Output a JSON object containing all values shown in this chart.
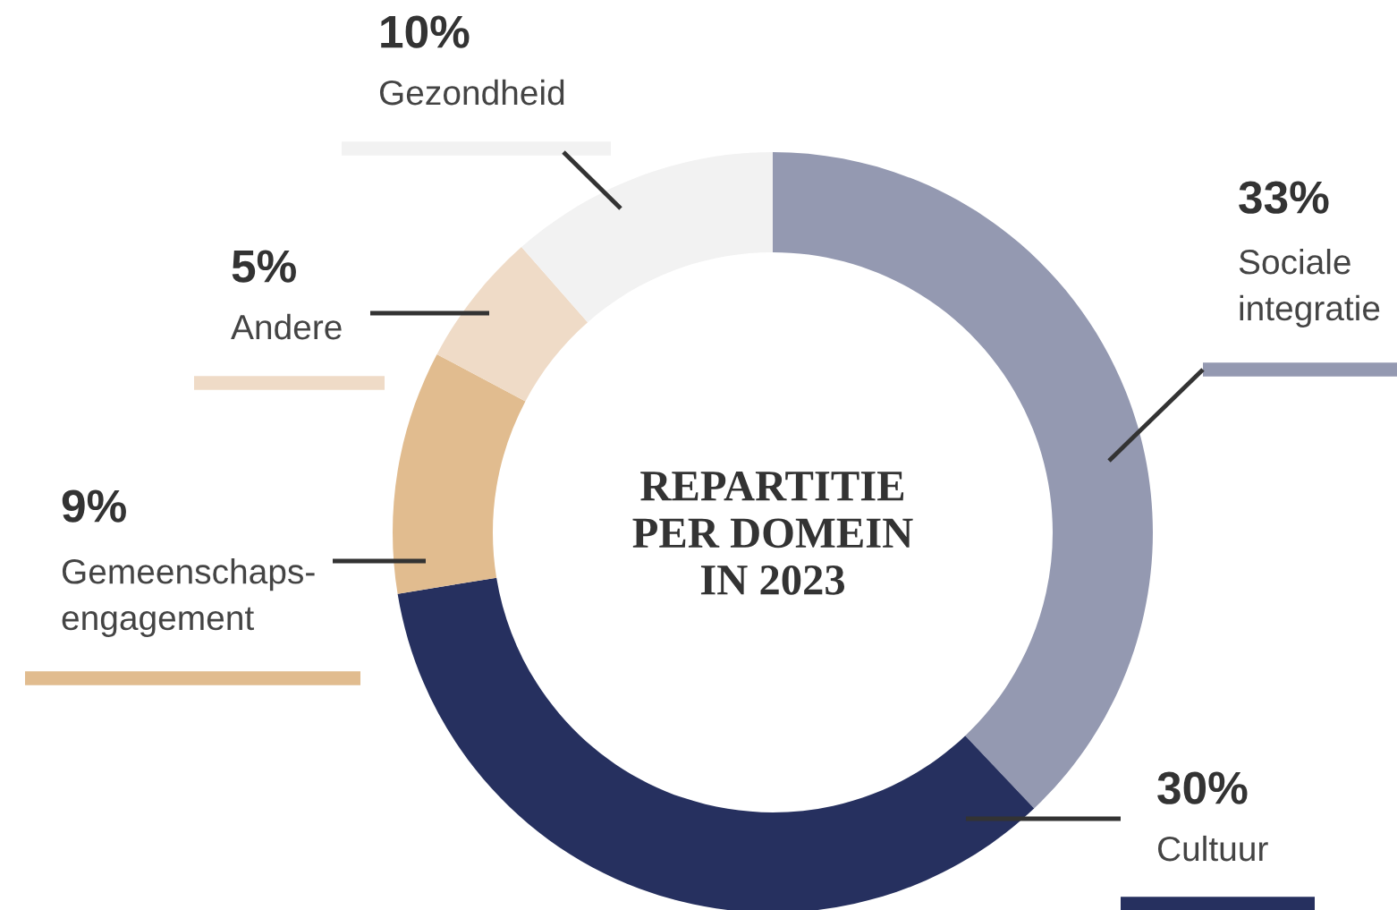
{
  "chart_data": {
    "type": "donut",
    "title": "REPARTITIE\nPER DOMEIN\nIN 2023",
    "categories": [
      "Sociale\nintegratie",
      "Cultuur",
      "Gemeenschaps-\nengagement",
      "Andere",
      "Gezondheid"
    ],
    "values": [
      33,
      30,
      9,
      5,
      10
    ],
    "value_labels": [
      "33%",
      "30%",
      "9%",
      "5%",
      "10%"
    ],
    "colors": [
      "#9499b1",
      "#26305f",
      "#e1bc8f",
      "#efdbc7",
      "#f2f2f2"
    ]
  }
}
